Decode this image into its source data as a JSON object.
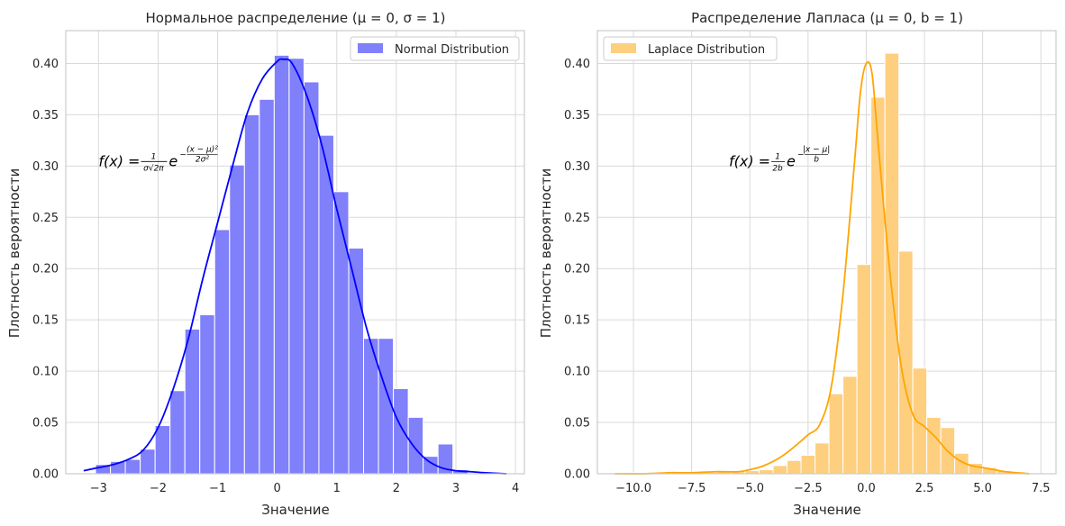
{
  "figure": {
    "background": "#ffffff",
    "grid_color": "#d9d9d9",
    "spine_color": "#cccccc"
  },
  "chart_data": [
    {
      "type": "bar",
      "subtype": "histogram_with_kde",
      "title": "Нормальное распределение (μ = 0, σ = 1)",
      "xlabel": "Значение",
      "ylabel": "Плотность вероятности",
      "xlim": [
        -3.55,
        4.15
      ],
      "ylim": [
        0,
        0.432
      ],
      "xticks": [
        -3,
        -2,
        -1,
        0,
        1,
        2,
        3,
        4
      ],
      "xtick_labels": [
        "−3",
        "−2",
        "−1",
        "0",
        "1",
        "2",
        "3",
        "4"
      ],
      "yticks": [
        0,
        0.05,
        0.1,
        0.15,
        0.2,
        0.25,
        0.3,
        0.35,
        0.4
      ],
      "ytick_labels": [
        "0.00",
        "0.05",
        "0.10",
        "0.15",
        "0.20",
        "0.25",
        "0.30",
        "0.35",
        "0.40"
      ],
      "grid": true,
      "legend": {
        "placement": "top-right",
        "entries": [
          "Normal Distribution"
        ]
      },
      "bar_color": "#8080fb",
      "line_color": "#0000ff",
      "bin_edges": [
        -3.05,
        -2.8,
        -2.55,
        -2.3,
        -2.05,
        -1.8,
        -1.55,
        -1.3,
        -1.05,
        -0.8,
        -0.55,
        -0.3,
        -0.05,
        0.2,
        0.45,
        0.7,
        0.95,
        1.2,
        1.45,
        1.7,
        1.95,
        2.2,
        2.45,
        2.7,
        2.95,
        3.2
      ],
      "values": [
        0.009,
        0.012,
        0.014,
        0.024,
        0.047,
        0.081,
        0.141,
        0.155,
        0.238,
        0.301,
        0.35,
        0.365,
        0.408,
        0.405,
        0.382,
        0.33,
        0.275,
        0.22,
        0.132,
        0.132,
        0.083,
        0.055,
        0.017,
        0.029,
        0.004
      ],
      "kde_x": [
        -3.25,
        -3.0,
        -2.75,
        -2.5,
        -2.25,
        -2.0,
        -1.75,
        -1.5,
        -1.25,
        -1.0,
        -0.75,
        -0.5,
        -0.25,
        0.0,
        0.1,
        0.25,
        0.5,
        0.75,
        1.0,
        1.25,
        1.5,
        1.75,
        2.0,
        2.25,
        2.5,
        2.75,
        3.0,
        3.25,
        3.5,
        3.85
      ],
      "kde_y": [
        0.003,
        0.006,
        0.009,
        0.014,
        0.023,
        0.045,
        0.082,
        0.13,
        0.19,
        0.245,
        0.3,
        0.352,
        0.385,
        0.402,
        0.404,
        0.4,
        0.368,
        0.32,
        0.258,
        0.2,
        0.142,
        0.095,
        0.055,
        0.03,
        0.014,
        0.006,
        0.003,
        0.002,
        0.001,
        0.0
      ],
      "annotation": {
        "x": -3.0,
        "y": 0.3,
        "main": "f(x) = ",
        "frac_num": "1",
        "frac_den": "σ√2π",
        "base": "e",
        "exp_num": "(x − μ)²",
        "exp_den": "2σ²"
      }
    },
    {
      "type": "bar",
      "subtype": "histogram_with_kde",
      "title": "Распределение Лапласа (μ = 0, b = 1)",
      "xlabel": "Значение",
      "ylabel": "Плотность вероятности",
      "xlim": [
        -11.55,
        8.15
      ],
      "ylim": [
        0,
        0.432
      ],
      "xticks": [
        -10,
        -7.5,
        -5,
        -2.5,
        0,
        2.5,
        5,
        7.5
      ],
      "xtick_labels": [
        "−10.0",
        "−7.5",
        "−5.0",
        "−2.5",
        "0.0",
        "2.5",
        "5.0",
        "7.5"
      ],
      "yticks": [
        0,
        0.05,
        0.1,
        0.15,
        0.2,
        0.25,
        0.3,
        0.35,
        0.4
      ],
      "ytick_labels": [
        "0.00",
        "0.05",
        "0.10",
        "0.15",
        "0.20",
        "0.25",
        "0.30",
        "0.35",
        "0.40"
      ],
      "grid": true,
      "legend": {
        "placement": "top-left",
        "entries": [
          "Laplace Distribution"
        ]
      },
      "bar_color": "#fdcf7f",
      "line_color": "#ffa500",
      "bin_edges": [
        -4.6,
        -4.0,
        -3.4,
        -2.8,
        -2.2,
        -1.6,
        -1.0,
        -0.4,
        0.2,
        0.8,
        1.4,
        2.0,
        2.6,
        3.2,
        3.8,
        4.4,
        5.0,
        5.6
      ],
      "values": [
        0.004,
        0.008,
        0.013,
        0.018,
        0.03,
        0.078,
        0.095,
        0.204,
        0.367,
        0.41,
        0.217,
        0.103,
        0.055,
        0.045,
        0.02,
        0.01,
        0.006
      ],
      "extra_bins_left": [
        [
          -11.2,
          -10.6,
          0.001
        ],
        [
          -10.6,
          -10.0,
          0.001
        ],
        [
          -9.4,
          -8.8,
          0.0015
        ],
        [
          -8.8,
          -8.2,
          0.001
        ],
        [
          -7.0,
          -6.4,
          0.0015
        ],
        [
          -6.4,
          -5.8,
          0.002
        ],
        [
          -5.8,
          -5.2,
          0.002
        ],
        [
          -5.2,
          -4.6,
          0.003
        ]
      ],
      "extra_bins_right": [
        [
          5.6,
          6.2,
          0.003
        ],
        [
          6.2,
          6.8,
          0.002
        ]
      ],
      "kde_x": [
        -10.8,
        -9.5,
        -8.5,
        -7.5,
        -6.5,
        -5.5,
        -5.0,
        -4.5,
        -4.0,
        -3.5,
        -3.0,
        -2.5,
        -2.0,
        -1.5,
        -1.0,
        -0.5,
        -0.25,
        0.0,
        0.25,
        0.5,
        1.0,
        1.5,
        2.0,
        2.5,
        3.0,
        3.5,
        4.0,
        4.5,
        5.0,
        5.5,
        6.0,
        7.0
      ],
      "kde_y": [
        0.0,
        0.0,
        0.001,
        0.001,
        0.002,
        0.002,
        0.004,
        0.007,
        0.012,
        0.019,
        0.028,
        0.038,
        0.048,
        0.085,
        0.175,
        0.305,
        0.372,
        0.4,
        0.39,
        0.325,
        0.2,
        0.105,
        0.058,
        0.046,
        0.035,
        0.022,
        0.013,
        0.008,
        0.006,
        0.004,
        0.002,
        0.0
      ],
      "annotation": {
        "x": -5.9,
        "y": 0.3,
        "main": "f(x) = ",
        "frac_num": "1",
        "frac_den": "2b",
        "base": "e",
        "exp_num": "|x − μ|",
        "exp_den": "b"
      }
    }
  ]
}
